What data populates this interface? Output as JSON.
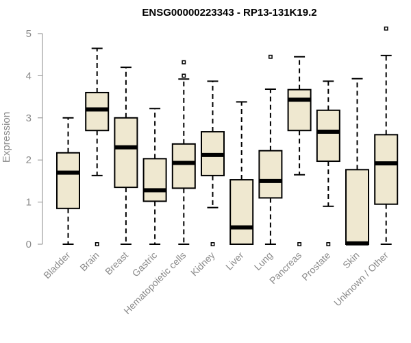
{
  "chart_data": {
    "type": "boxplot",
    "title": "ENSG00000223343 - RP13-131K19.2",
    "xlabel": "",
    "ylabel": "Expression",
    "ylim": [
      0,
      5
    ],
    "yticks": [
      0,
      1,
      2,
      3,
      4,
      5
    ],
    "box_color": "#efe8d0",
    "categories": [
      "Bladder",
      "Brain",
      "Breast",
      "Gastric",
      "Hematopoietic cells",
      "Kidney",
      "Liver",
      "Lung",
      "Pancreas",
      "Prostate",
      "Skin",
      "Unknown / Other"
    ],
    "boxes": [
      {
        "name": "Bladder",
        "whisker_low": 0,
        "q1": 0.85,
        "median": 1.7,
        "q3": 2.17,
        "whisker_high": 3.0,
        "outliers": []
      },
      {
        "name": "Brain",
        "whisker_low": 1.63,
        "q1": 2.7,
        "median": 3.2,
        "q3": 3.6,
        "whisker_high": 4.65,
        "outliers": [
          0
        ]
      },
      {
        "name": "Breast",
        "whisker_low": 0,
        "q1": 1.35,
        "median": 2.3,
        "q3": 3.0,
        "whisker_high": 4.2,
        "outliers": []
      },
      {
        "name": "Gastric",
        "whisker_low": 0,
        "q1": 1.02,
        "median": 1.28,
        "q3": 2.03,
        "whisker_high": 3.22,
        "outliers": []
      },
      {
        "name": "Hematopoietic cells",
        "whisker_low": 0,
        "q1": 1.33,
        "median": 1.93,
        "q3": 2.38,
        "whisker_high": 3.92,
        "outliers": [
          4.0,
          4.32
        ]
      },
      {
        "name": "Kidney",
        "whisker_low": 0.87,
        "q1": 1.63,
        "median": 2.12,
        "q3": 2.67,
        "whisker_high": 3.87,
        "outliers": [
          0
        ]
      },
      {
        "name": "Liver",
        "whisker_low": 0,
        "q1": 0,
        "median": 0.4,
        "q3": 1.53,
        "whisker_high": 3.38,
        "outliers": []
      },
      {
        "name": "Lung",
        "whisker_low": 0,
        "q1": 1.1,
        "median": 1.5,
        "q3": 2.22,
        "whisker_high": 3.68,
        "outliers": [
          4.45
        ]
      },
      {
        "name": "Pancreas",
        "whisker_low": 1.65,
        "q1": 2.7,
        "median": 3.43,
        "q3": 3.67,
        "whisker_high": 4.45,
        "outliers": [
          0
        ]
      },
      {
        "name": "Prostate",
        "whisker_low": 0.9,
        "q1": 1.97,
        "median": 2.67,
        "q3": 3.18,
        "whisker_high": 3.87,
        "outliers": [
          0
        ]
      },
      {
        "name": "Skin",
        "whisker_low": 0,
        "q1": 0,
        "median": 0.02,
        "q3": 1.77,
        "whisker_high": 3.93,
        "outliers": []
      },
      {
        "name": "Unknown / Other",
        "whisker_low": 0,
        "q1": 0.95,
        "median": 1.92,
        "q3": 2.6,
        "whisker_high": 4.48,
        "outliers": [
          5.12
        ]
      }
    ]
  }
}
